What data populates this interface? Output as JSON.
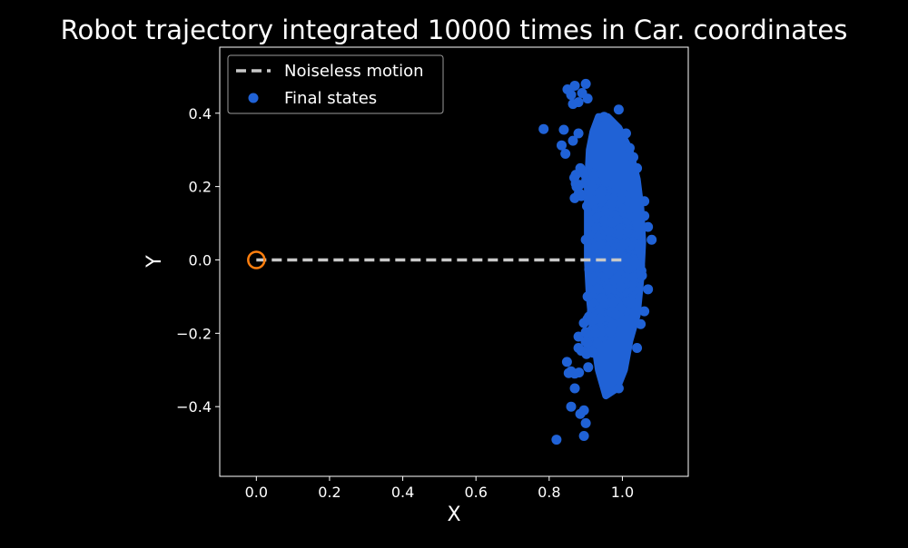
{
  "chart_data": {
    "type": "scatter",
    "title": "Robot trajectory integrated 10000 times in Car. coordinates",
    "xlabel": "X",
    "ylabel": "Y",
    "xlim": [
      -0.1,
      1.18
    ],
    "ylim": [
      -0.59,
      0.58
    ],
    "xticks": [
      0.0,
      0.2,
      0.4,
      0.6,
      0.8,
      1.0
    ],
    "xtick_labels": [
      "0.0",
      "0.2",
      "0.4",
      "0.6",
      "0.8",
      "1.0"
    ],
    "yticks": [
      0.4,
      0.2,
      0.0,
      -0.2,
      -0.4
    ],
    "ytick_labels": [
      "0.4",
      "0.2",
      "0.0",
      "−0.2",
      "−0.4"
    ],
    "grid": false,
    "legend_position": "top-left",
    "colors": {
      "background": "#000000",
      "text": "#ffffff",
      "noiseless": "#c8c8c8",
      "final_states": "#2062d6",
      "start_marker": "#ff7f0e"
    },
    "series": [
      {
        "name": "Noiseless motion",
        "kind": "dashed-line",
        "points": [
          [
            0.0,
            0.0
          ],
          [
            1.0,
            0.0
          ]
        ]
      },
      {
        "name": "Final states",
        "kind": "scatter",
        "count": 10000,
        "points": [
          [
            0.82,
            -0.49
          ],
          [
            0.895,
            -0.48
          ],
          [
            0.86,
            0.45
          ],
          [
            0.87,
            0.475
          ],
          [
            0.9,
            0.48
          ],
          [
            0.85,
            0.465
          ],
          [
            0.89,
            0.455
          ],
          [
            0.905,
            0.44
          ],
          [
            0.88,
            0.43
          ],
          [
            0.865,
            0.425
          ],
          [
            0.99,
            0.41
          ],
          [
            0.95,
            0.39
          ],
          [
            0.84,
            0.355
          ],
          [
            0.865,
            0.325
          ],
          [
            0.88,
            0.345
          ],
          [
            1.01,
            0.345
          ],
          [
            1.02,
            0.305
          ],
          [
            0.885,
            0.25
          ],
          [
            0.885,
            0.18
          ],
          [
            0.9,
            0.055
          ],
          [
            1.08,
            0.055
          ],
          [
            1.07,
            0.09
          ],
          [
            1.06,
            0.12
          ],
          [
            0.905,
            -0.1
          ],
          [
            0.88,
            -0.24
          ],
          [
            0.87,
            -0.31
          ],
          [
            0.87,
            -0.35
          ],
          [
            0.86,
            -0.4
          ],
          [
            0.885,
            -0.42
          ],
          [
            0.9,
            -0.445
          ],
          [
            0.895,
            -0.41
          ],
          [
            0.99,
            -0.35
          ],
          [
            0.995,
            -0.31
          ],
          [
            1.04,
            -0.24
          ],
          [
            1.05,
            -0.175
          ],
          [
            1.06,
            -0.14
          ],
          [
            1.07,
            -0.08
          ],
          [
            1.06,
            0.16
          ],
          [
            1.04,
            0.25
          ],
          [
            1.03,
            0.28
          ]
        ],
        "dense_band": [
          [
            0.935,
            0.39
          ],
          [
            0.92,
            0.35
          ],
          [
            0.91,
            0.3
          ],
          [
            0.905,
            0.2
          ],
          [
            0.905,
            0.1
          ],
          [
            0.905,
            0.0
          ],
          [
            0.91,
            -0.1
          ],
          [
            0.92,
            -0.2
          ],
          [
            0.935,
            -0.3
          ],
          [
            0.955,
            -0.37
          ],
          [
            0.985,
            -0.35
          ],
          [
            1.005,
            -0.3
          ],
          [
            1.02,
            -0.22
          ],
          [
            1.04,
            -0.15
          ],
          [
            1.05,
            -0.05
          ],
          [
            1.055,
            0.05
          ],
          [
            1.05,
            0.14
          ],
          [
            1.04,
            0.22
          ],
          [
            1.02,
            0.3
          ],
          [
            0.99,
            0.36
          ],
          [
            0.96,
            0.39
          ]
        ]
      },
      {
        "name": "",
        "kind": "start-marker",
        "points": [
          [
            0.0,
            0.0
          ]
        ]
      }
    ]
  }
}
